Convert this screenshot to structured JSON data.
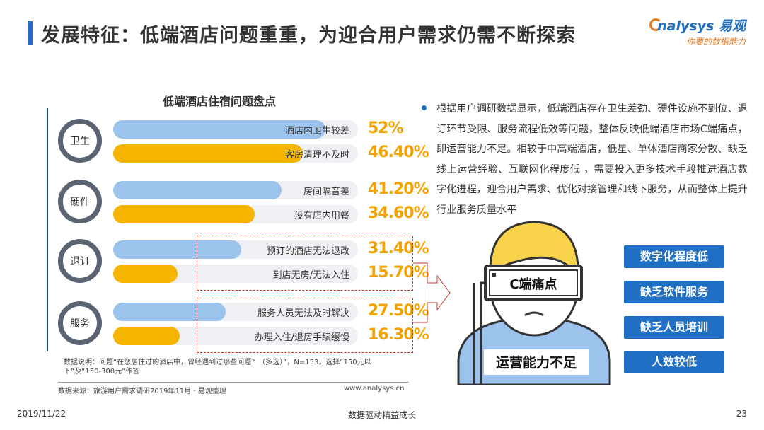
{
  "header": {
    "title": "发展特征：低端酒店问题重重，为迎合用户需求仍需不断探索",
    "logo_main": "nalysys 易观",
    "logo_sub": "你要的数据能力"
  },
  "chart_data": {
    "type": "bar",
    "title": "低端酒店住宿问题盘点",
    "groups": [
      {
        "name": "卫生",
        "items": [
          {
            "label": "酒店内卫生较差",
            "value": 52,
            "display": "52%",
            "color": "#9cc3ec"
          },
          {
            "label": "客房清理不及时",
            "value": 46.4,
            "display": "46.40%",
            "color": "#f4b400"
          }
        ]
      },
      {
        "name": "硬件",
        "items": [
          {
            "label": "房间隔音差",
            "value": 41.2,
            "display": "41.20%",
            "color": "#9cc3ec"
          },
          {
            "label": "没有店内用餐",
            "value": 34.6,
            "display": "34.60%",
            "color": "#f4b400"
          }
        ]
      },
      {
        "name": "退订",
        "items": [
          {
            "label": "预订的酒店无法退改",
            "value": 31.4,
            "display": "31.40%",
            "color": "#9cc3ec"
          },
          {
            "label": "到店无房/无法入住",
            "value": 15.7,
            "display": "15.70%",
            "color": "#f4b400"
          }
        ]
      },
      {
        "name": "服务",
        "items": [
          {
            "label": "服务人员无法及时解决",
            "value": 27.5,
            "display": "27.50%",
            "color": "#9cc3ec"
          },
          {
            "label": "办理入住/退房手续缓慢",
            "value": 16.3,
            "display": "16.30%",
            "color": "#f4b400"
          }
        ]
      }
    ],
    "xlim": [
      0,
      100
    ]
  },
  "note": "数据说明：问题“在您居住过的酒店中，曾经遇到过哪些问题？（多选）”，N=153，选择“150元以下”及“150-300元”作答",
  "source": "数据来源：旅游用户需求调研2019年11月 · 易观整理",
  "source_url": "www.analysys.cn",
  "right_text": "根据用户调研数据显示，低端酒店存在卫生差劲、硬件设施不到位、退订环节受限、服务流程低效等问题，整体反映低端酒店市场C端痛点，即运营能力不足。相较于中高端酒店，低星、单体酒店商家分散、缺乏线上运营经验、互联网化程度低 ，需要投入更多技术手段推进酒店数字化进程，迎合用户需求、优化对接管理和线下服务，从而整体上提升行业服务质量水平",
  "illustration": {
    "headset_label": "C端痛点",
    "shirt_label": "运营能力不足"
  },
  "tags": [
    "数字化程度低",
    "缺乏软件服务",
    "缺乏人员培训",
    "人效较低"
  ],
  "footer": {
    "date": "2019/11/22",
    "center": "数据驱动精益成长",
    "page": "23"
  }
}
